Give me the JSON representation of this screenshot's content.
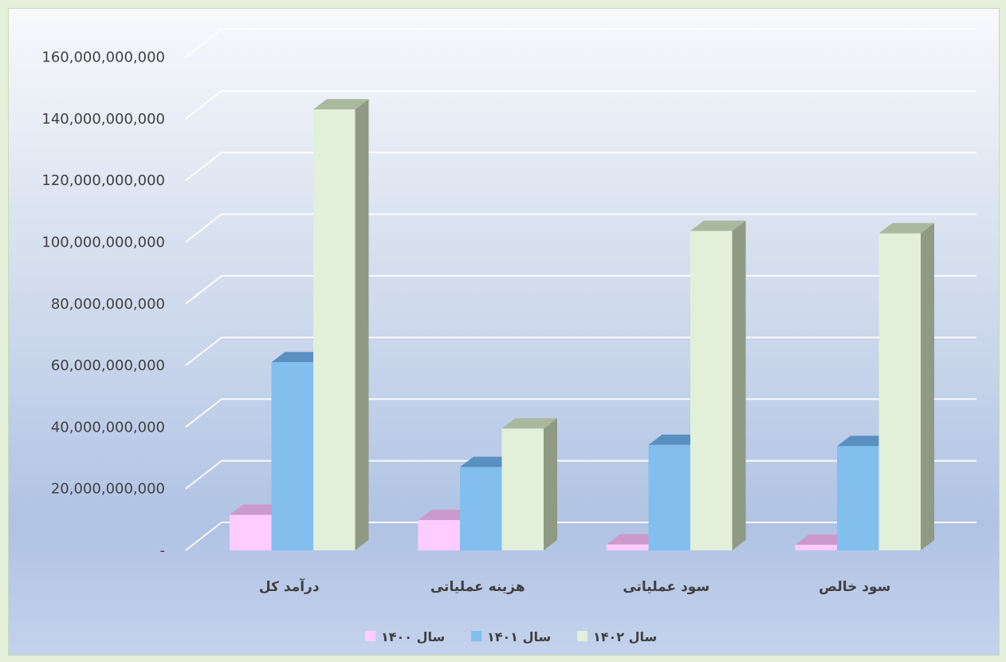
{
  "chart_data": {
    "type": "bar",
    "title": "",
    "xlabel": "",
    "ylabel": "",
    "categories": [
      "درآمد کل",
      "هزینه عملیاتی",
      "سود عملیاتی",
      "سود خالص"
    ],
    "series": [
      {
        "name": "سال ۱۴۰۰",
        "color": "#ffccff",
        "top_color": "#cc99cc",
        "side_color": "#b38fb3",
        "values": [
          11500000000,
          9800000000,
          1900000000,
          1800000000
        ]
      },
      {
        "name": "سال ۱۴۰۱",
        "color": "#82bfef",
        "top_color": "#5a8fc2",
        "side_color": "#5585b5",
        "values": [
          61000000000,
          27000000000,
          34200000000,
          33800000000
        ]
      },
      {
        "name": "سال ۱۴۰۲",
        "color": "#e2efd9",
        "top_color": "#aab89d",
        "side_color": "#8e9a84",
        "values": [
          143000000000,
          39500000000,
          103600000000,
          102800000000
        ]
      }
    ],
    "ylim": [
      0,
      160000000000
    ],
    "yticks": [
      {
        "value": 0,
        "label": "-"
      },
      {
        "value": 20000000000,
        "label": "20,000,000,000"
      },
      {
        "value": 40000000000,
        "label": "40,000,000,000"
      },
      {
        "value": 60000000000,
        "label": "60,000,000,000"
      },
      {
        "value": 80000000000,
        "label": "80,000,000,000"
      },
      {
        "value": 100000000000,
        "label": "100,000,000,000"
      },
      {
        "value": 120000000000,
        "label": "120,000,000,000"
      },
      {
        "value": 140000000000,
        "label": "140,000,000,000"
      },
      {
        "value": 160000000000,
        "label": "160,000,000,000"
      }
    ],
    "grid": true,
    "legend": "bottom",
    "projection": "3d"
  }
}
